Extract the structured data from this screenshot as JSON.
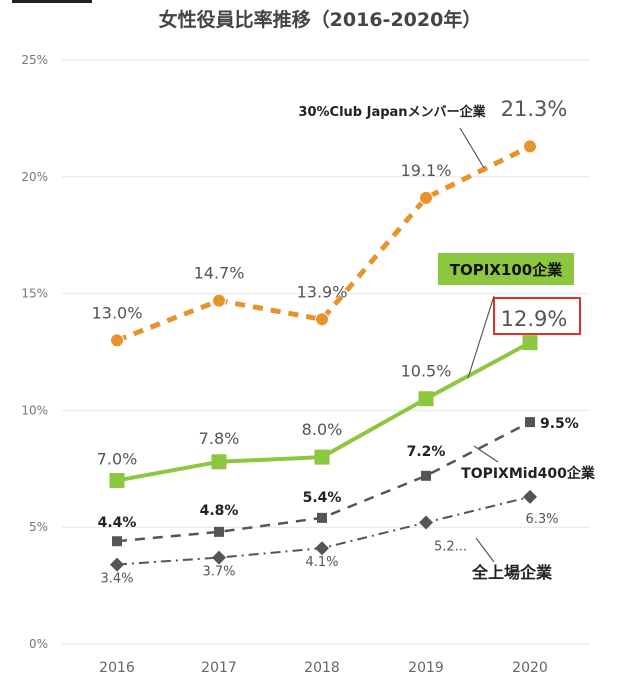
{
  "chart_data": {
    "type": "line",
    "title": "女性役員比率推移（2016-2020年）",
    "categories": [
      "2016",
      "2017",
      "2018",
      "2019",
      "2020"
    ],
    "y_ticks": [
      "0%",
      "5%",
      "10%",
      "15%",
      "20%",
      "25%"
    ],
    "ylim": [
      0,
      25
    ],
    "grid": true,
    "series": [
      {
        "name": "30%Club Japanメンバー企業",
        "values": [
          13.0,
          14.7,
          13.9,
          19.1,
          21.3
        ],
        "labels": [
          "13.0%",
          "14.7%",
          "13.9%",
          "19.1%",
          "21.3%"
        ],
        "color": "#E8922C",
        "line_style": "dashed",
        "marker": "circle"
      },
      {
        "name": "TOPIX100企業",
        "values": [
          7.0,
          7.8,
          8.0,
          10.5,
          12.9
        ],
        "labels": [
          "7.0%",
          "7.8%",
          "8.0%",
          "10.5%",
          "12.9%"
        ],
        "color": "#8DC63F",
        "line_style": "solid",
        "marker": "square"
      },
      {
        "name": "TOPIXMid400企業",
        "values": [
          4.4,
          4.8,
          5.4,
          7.2,
          9.5
        ],
        "labels": [
          "4.4%",
          "4.8%",
          "5.4%",
          "7.2%",
          "9.5%"
        ],
        "color": "#555555",
        "line_style": "dashed",
        "marker": "square"
      },
      {
        "name": "全上場企業",
        "values": [
          3.4,
          3.7,
          4.1,
          5.2,
          6.3
        ],
        "labels": [
          "3.4%",
          "3.7%",
          "4.1%",
          "5.2...",
          "6.3%"
        ],
        "color": "#555555",
        "line_style": "dashdot",
        "marker": "diamond"
      }
    ],
    "highlight_color": "#E0312F",
    "label_color": "#555555",
    "grid_color": "#e6e6e6"
  }
}
